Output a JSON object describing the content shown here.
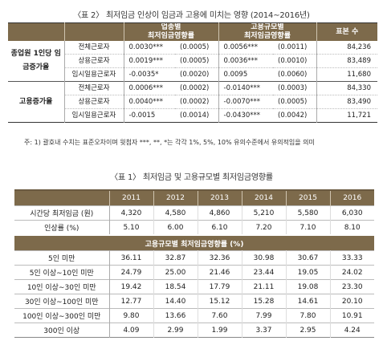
{
  "table2": {
    "title": "〈표 2〉 최저임금 인상이 임금과 고용에 미치는 영향 (2014∼2016년)",
    "header": {
      "col1": "업종별\n최저임금영향률",
      "col2": "고용규모별\n최저임금영향률",
      "col3": "표본 수"
    },
    "groups": [
      {
        "label": "종업원 1인당 임금증가율",
        "rows": [
          {
            "label": "전체근로자",
            "c1": "0.0030***",
            "se1": "(0.0005)",
            "c2": "0.0056***",
            "se2": "(0.0011)",
            "n": "84,236"
          },
          {
            "label": "상용근로자",
            "c1": "0.0019***",
            "se1": "(0.0005)",
            "c2": "0.0036***",
            "se2": "(0.0010)",
            "n": "83,489"
          },
          {
            "label": "임시일용근로자",
            "c1": "-0.0035*",
            "se1": "(0.0020)",
            "c2": "0.0095",
            "se2": "(0.0060)",
            "n": "11,680"
          }
        ]
      },
      {
        "label": "고용증가율",
        "rows": [
          {
            "label": "전체근로자",
            "c1": "0.0006***",
            "se1": "(0.0002)",
            "c2": "-0.0140***",
            "se2": "(0.0003)",
            "n": "84,330"
          },
          {
            "label": "상용근로자",
            "c1": "0.0040***",
            "se1": "(0.0002)",
            "c2": "-0.0070***",
            "se2": "(0.0005)",
            "n": "83,490"
          },
          {
            "label": "임시일용근로자",
            "c1": "-0.0015",
            "se1": "(0.0014)",
            "c2": "-0.0430***",
            "se2": "(0.0042)",
            "n": "11,721"
          }
        ]
      }
    ],
    "note": "주: 1) 괄호내 수치는 표준오차이며 윗첨자 ***, **, *는 각각 1%, 5%, 10% 유의수준에서 유의적임을 의미"
  },
  "table1": {
    "title": "〈표 1〉 최저임금 및 고용규모별 최저임금영향률",
    "years": [
      "2011",
      "2012",
      "2013",
      "2014",
      "2015",
      "2016"
    ],
    "rows": [
      {
        "label": "시간당 최저임금 (원)",
        "values": [
          "4,320",
          "4,580",
          "4,860",
          "5,210",
          "5,580",
          "6,030"
        ]
      },
      {
        "label": "인상률 (%)",
        "values": [
          "5.10",
          "6.00",
          "6.10",
          "7.20",
          "7.10",
          "8.10"
        ]
      }
    ],
    "subheader": "고용규모별 최저임금영향률 (%)",
    "size_rows": [
      {
        "label": "5인 미만",
        "values": [
          "36.11",
          "32.87",
          "32.36",
          "30.98",
          "30.67",
          "33.33"
        ]
      },
      {
        "label": "5인 이상∼10인 미만",
        "values": [
          "24.79",
          "25.00",
          "21.46",
          "23.44",
          "19.05",
          "24.02"
        ]
      },
      {
        "label": "10인 이상∼30인 미만",
        "values": [
          "19.42",
          "18.54",
          "17.79",
          "21.11",
          "19.08",
          "23.30"
        ]
      },
      {
        "label": "30인 이상∼100인 미만",
        "values": [
          "12.77",
          "14.40",
          "15.12",
          "15.28",
          "14.61",
          "20.10"
        ]
      },
      {
        "label": "100인 이상∼300인 미만",
        "values": [
          "9.80",
          "13.66",
          "7.60",
          "7.99",
          "7.80",
          "10.91"
        ]
      },
      {
        "label": "300인 이상",
        "values": [
          "4.09",
          "2.99",
          "1.99",
          "3.37",
          "2.95",
          "4.24"
        ]
      }
    ]
  }
}
